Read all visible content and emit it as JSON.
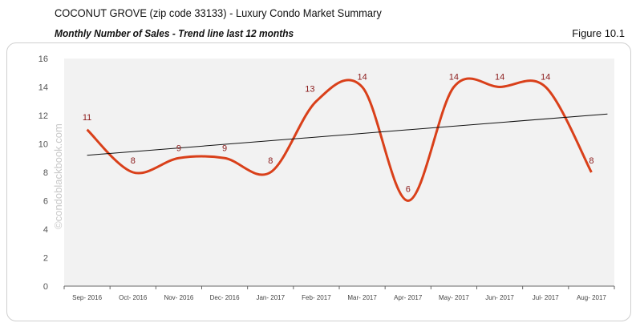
{
  "header": {
    "title": "COCONUT GROVE (zip code 33133) - Luxury Condo Market Summary",
    "subtitle": "Monthly Number of Sales - Trend line last 12 months",
    "figure": "Figure 10.1"
  },
  "watermark": "©condoblackbook.com",
  "chart_data": {
    "type": "line",
    "categories": [
      "Sep- 2016",
      "Oct- 2016",
      "Nov- 2016",
      "Dec- 2016",
      "Jan- 2017",
      "Feb- 2017",
      "Mar- 2017",
      "Apr- 2017",
      "May- 2017",
      "Jun- 2017",
      "Jul- 2017",
      "Aug- 2017"
    ],
    "series": [
      {
        "values": [
          11,
          8,
          9,
          9,
          8,
          13,
          14,
          6,
          14,
          14,
          14,
          8
        ],
        "color": "#d9401a",
        "label_color": "#8b1a1a"
      }
    ],
    "trendline": {
      "start": 9.2,
      "end": 12.1,
      "color": "#111111"
    },
    "ylim": [
      0,
      16
    ],
    "yticks": [
      0,
      2,
      4,
      6,
      8,
      10,
      12,
      14,
      16
    ],
    "plot_background": "#f2f2f2",
    "grid": false,
    "legend": "none"
  }
}
